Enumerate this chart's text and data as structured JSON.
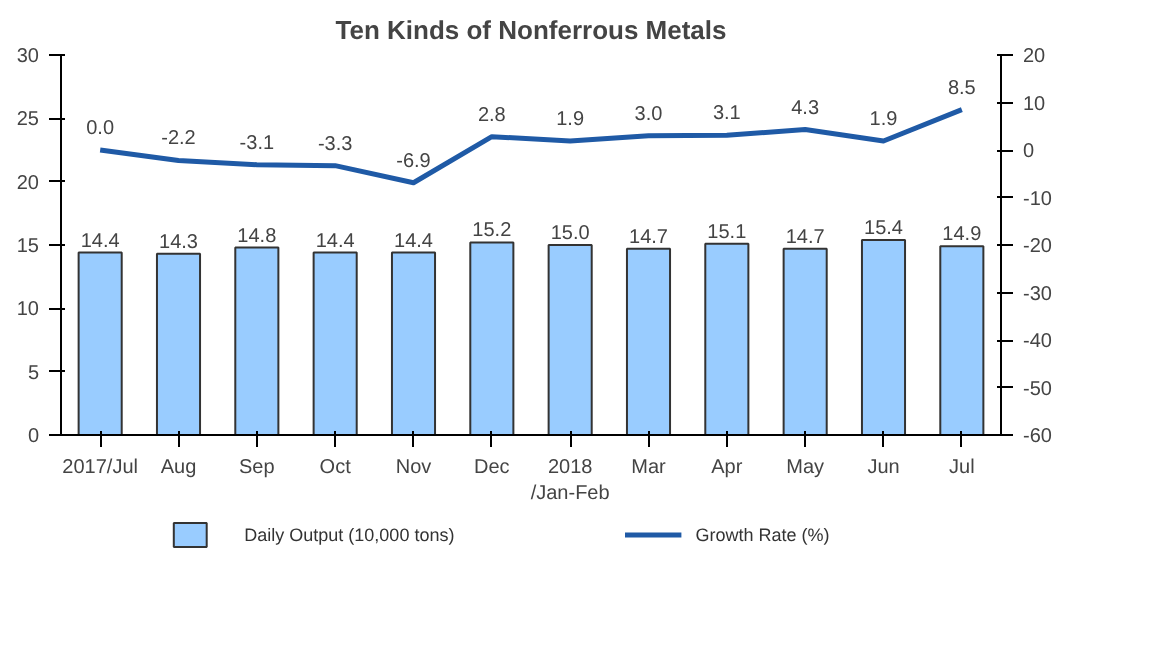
{
  "chart_data": {
    "type": "bar",
    "title": "Ten Kinds of Nonferrous Metals",
    "categories": [
      "2017/Jul",
      "Aug",
      "Sep",
      "Oct",
      "Nov",
      "Dec",
      "2018\n/Jan-Feb",
      "Mar",
      "Apr",
      "May",
      "Jun",
      "Jul"
    ],
    "series": [
      {
        "name": "Daily Output (10,000 tons)",
        "color": "#99ccff",
        "values": [
          14.4,
          14.3,
          14.8,
          14.4,
          14.4,
          15.2,
          15.0,
          14.7,
          15.1,
          14.7,
          15.4,
          14.9
        ],
        "value_labels": [
          "14.4",
          "14.3",
          "14.8",
          "14.4",
          "14.4",
          "15.2",
          "15.0",
          "14.7",
          "15.1",
          "14.7",
          "15.4",
          "14.9"
        ]
      },
      {
        "name": "Growth Rate (%)",
        "type": "line",
        "axis": "y2",
        "color": "#1f5aa6",
        "values": [
          0.0,
          -2.2,
          -3.1,
          -3.3,
          -6.9,
          2.8,
          1.9,
          3.0,
          3.1,
          4.3,
          1.9,
          8.5
        ],
        "value_labels": [
          "0.0",
          "-2.2",
          "-3.1",
          "-3.3",
          "-6.9",
          "2.8",
          "1.9",
          "3.0",
          "3.1",
          "4.3",
          "1.9",
          "8.5"
        ]
      }
    ],
    "ylim": [
      0,
      30
    ],
    "yticks": [
      0,
      5,
      10,
      15,
      20,
      25,
      30
    ],
    "y2lim": [
      -60,
      20
    ],
    "y2ticks": [
      -60,
      -50,
      -40,
      -30,
      -20,
      -10,
      0,
      10,
      20
    ],
    "legend": "bottom",
    "grid": false,
    "line_style": "solid"
  }
}
